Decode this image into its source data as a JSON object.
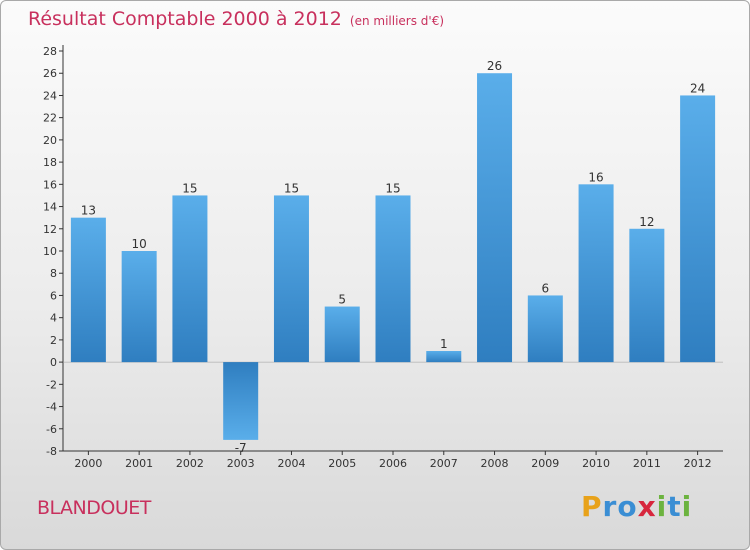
{
  "chart_data": {
    "type": "bar",
    "title": "Résultat Comptable 2000 à 2012",
    "subtitle": "(en milliers d'€)",
    "categories": [
      "2000",
      "2001",
      "2002",
      "2003",
      "2004",
      "2005",
      "2006",
      "2007",
      "2008",
      "2009",
      "2010",
      "2011",
      "2012"
    ],
    "values": [
      13,
      10,
      15,
      -7,
      15,
      5,
      15,
      1,
      26,
      6,
      16,
      12,
      24
    ],
    "ylim": [
      -8,
      28
    ],
    "yticks": [
      -8,
      -6,
      -4,
      -2,
      0,
      2,
      4,
      6,
      8,
      10,
      12,
      14,
      16,
      18,
      20,
      22,
      24,
      26,
      28
    ],
    "xlabel": "",
    "ylabel": "",
    "grid": false,
    "legend": "none"
  },
  "commune": "BLANDOUET",
  "logo": {
    "letters": [
      "P",
      "r",
      "o",
      "x",
      "i",
      "t",
      "i"
    ],
    "colors": [
      "#e8a21a",
      "#3a8ed4",
      "#3a8ed4",
      "#d7263d",
      "#6cb33f",
      "#3a8ed4",
      "#6cb33f"
    ]
  },
  "colors": {
    "title": "#c8305d",
    "bar_top": "#5aaeea",
    "bar_bottom": "#2f7ec0"
  }
}
